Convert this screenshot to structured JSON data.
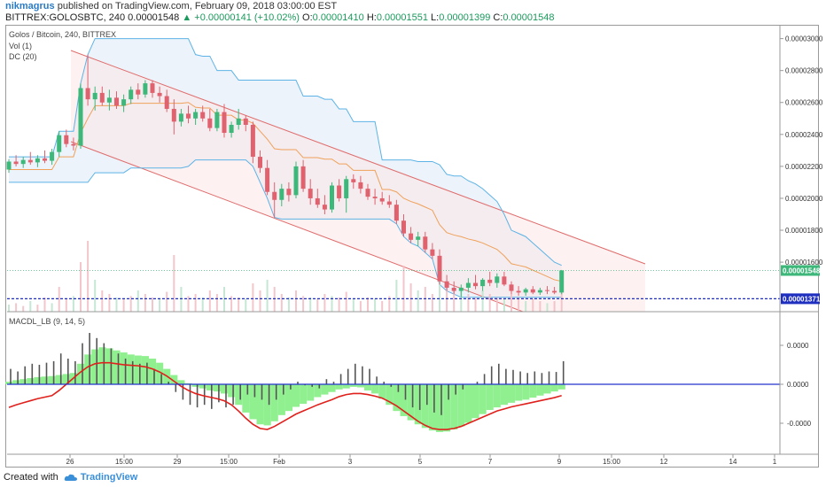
{
  "header": {
    "user": "nikmagrus",
    "published": "published on TradingView.com, February 09, 2018 03:00:00 EST",
    "symbol": "BITTREX:GOLOSBTC, 240",
    "price": "0.00001548",
    "change": "+0.00000141 (+10.02%)",
    "o_label": "O:",
    "o_value": "0.00001410",
    "h_label": "H:",
    "h_value": "0.00001551",
    "l_label": "L:",
    "l_value": "0.00001399",
    "c_label": "C:",
    "c_value": "0.00001548"
  },
  "legend": {
    "title": "Golos / Bitcoin, 240, BITTREX",
    "vol": "Vol (1)",
    "dc": "DC (20)",
    "macd": "MACDL_LB (9, 14, 5)"
  },
  "footer": {
    "created": "Created with",
    "brand": "TradingView"
  },
  "colors": {
    "up": "#3db87a",
    "down": "#e0626e",
    "dc_band": "#5db3e6",
    "dc_mid": "#f0a15a",
    "channel": "#e06c6c",
    "macd_hist": "#90f090",
    "signal": "#e0201c",
    "zero": "#2233cc"
  },
  "chart_data": [
    {
      "type": "candlestick",
      "title": "Golos / Bitcoin, 240, BITTREX",
      "y_ticks": [
        "0.00003000",
        "0.00002800",
        "0.00002600",
        "0.00002400",
        "0.00002200",
        "0.00002000",
        "0.00001800",
        "0.00001600"
      ],
      "ylim": [
        1.29e-05,
        3.02e-05
      ],
      "x_ticks": [
        "26",
        "15:00",
        "29",
        "15:00",
        "Feb",
        "3",
        "5",
        "7",
        "9",
        "15:00",
        "12",
        "14",
        "1"
      ],
      "price_labels": [
        {
          "value": "0.00001548",
          "color": "#3db87a"
        },
        {
          "value": "0.00001371",
          "color": "#1f2fbf"
        }
      ],
      "candles": [
        [
          2.18e-05,
          2.245e-05,
          2.16e-05,
          2.23e-05
        ],
        [
          2.23e-05,
          2.27e-05,
          2.2e-05,
          2.215e-05
        ],
        [
          2.215e-05,
          2.26e-05,
          2.19e-05,
          2.24e-05
        ],
        [
          2.24e-05,
          2.29e-05,
          2.21e-05,
          2.225e-05
        ],
        [
          2.225e-05,
          2.27e-05,
          2.195e-05,
          2.25e-05
        ],
        [
          2.25e-05,
          2.3e-05,
          2.22e-05,
          2.235e-05
        ],
        [
          2.235e-05,
          2.31e-05,
          2.21e-05,
          2.29e-05
        ],
        [
          2.29e-05,
          2.42e-05,
          2.26e-05,
          2.395e-05
        ],
        [
          2.395e-05,
          2.43e-05,
          2.32e-05,
          2.34e-05
        ],
        [
          2.34e-05,
          2.38e-05,
          2.3e-05,
          2.33e-05
        ],
        [
          2.33e-05,
          2.72e-05,
          2.31e-05,
          2.69e-05
        ],
        [
          2.69e-05,
          2.9e-05,
          2.58e-05,
          2.62e-05
        ],
        [
          2.62e-05,
          2.7e-05,
          2.55e-05,
          2.66e-05
        ],
        [
          2.66e-05,
          2.7e-05,
          2.58e-05,
          2.6e-05
        ],
        [
          2.6e-05,
          2.68e-05,
          2.55e-05,
          2.63e-05
        ],
        [
          2.63e-05,
          2.67e-05,
          2.56e-05,
          2.58e-05
        ],
        [
          2.58e-05,
          2.65e-05,
          2.54e-05,
          2.62e-05
        ],
        [
          2.62e-05,
          2.7e-05,
          2.59e-05,
          2.68e-05
        ],
        [
          2.68e-05,
          2.72e-05,
          2.62e-05,
          2.65e-05
        ],
        [
          2.65e-05,
          2.74e-05,
          2.63e-05,
          2.72e-05
        ],
        [
          2.72e-05,
          2.74e-05,
          2.63e-05,
          2.66e-05
        ],
        [
          2.66e-05,
          2.7e-05,
          2.6e-05,
          2.64e-05
        ],
        [
          2.64e-05,
          2.68e-05,
          2.54e-05,
          2.56e-05
        ],
        [
          2.56e-05,
          2.62e-05,
          2.4e-05,
          2.48e-05
        ],
        [
          2.48e-05,
          2.56e-05,
          2.45e-05,
          2.53e-05
        ],
        [
          2.53e-05,
          2.58e-05,
          2.47e-05,
          2.5e-05
        ],
        [
          2.5e-05,
          2.56e-05,
          2.46e-05,
          2.54e-05
        ],
        [
          2.54e-05,
          2.58e-05,
          2.48e-05,
          2.5e-05
        ],
        [
          2.5e-05,
          2.56e-05,
          2.42e-05,
          2.44e-05
        ],
        [
          2.44e-05,
          2.56e-05,
          2.42e-05,
          2.54e-05
        ],
        [
          2.54e-05,
          2.59e-05,
          2.38e-05,
          2.41e-05
        ],
        [
          2.41e-05,
          2.48e-05,
          2.38e-05,
          2.46e-05
        ],
        [
          2.46e-05,
          2.56e-05,
          2.43e-05,
          2.5e-05
        ],
        [
          2.5e-05,
          2.52e-05,
          2.42e-05,
          2.46e-05
        ],
        [
          2.46e-05,
          2.48e-05,
          2.22e-05,
          2.26e-05
        ],
        [
          2.26e-05,
          2.3e-05,
          2.16e-05,
          2.19e-05
        ],
        [
          2.19e-05,
          2.24e-05,
          2.02e-05,
          2.04e-05
        ],
        [
          2.04e-05,
          2.1e-05,
          1.88e-05,
          1.99e-05
        ],
        [
          1.99e-05,
          2.09e-05,
          1.95e-05,
          2.06e-05
        ],
        [
          2.06e-05,
          2.1e-05,
          1.98e-05,
          2.02e-05
        ],
        [
          2.02e-05,
          2.23e-05,
          2e-05,
          2.2e-05
        ],
        [
          2.2e-05,
          2.24e-05,
          2.04e-05,
          2.06e-05
        ],
        [
          2.06e-05,
          2.12e-05,
          1.96e-05,
          2e-05
        ],
        [
          2e-05,
          2.06e-05,
          1.94e-05,
          1.96e-05
        ],
        [
          1.96e-05,
          2.02e-05,
          1.9e-05,
          1.93e-05
        ],
        [
          1.93e-05,
          2.1e-05,
          1.91e-05,
          2.08e-05
        ],
        [
          2.08e-05,
          2.12e-05,
          1.98e-05,
          2e-05
        ],
        [
          2e-05,
          2.14e-05,
          1.91e-05,
          2.12e-05
        ],
        [
          2.12e-05,
          2.15e-05,
          2.06e-05,
          2.1e-05
        ],
        [
          2.1e-05,
          2.14e-05,
          2.03e-05,
          2.06e-05
        ],
        [
          2.06e-05,
          2.09e-05,
          1.99e-05,
          2.01e-05
        ],
        [
          2.01e-05,
          2.06e-05,
          1.96e-05,
          2e-05
        ],
        [
          2e-05,
          2.04e-05,
          1.96e-05,
          1.98e-05
        ],
        [
          1.98e-05,
          2.02e-05,
          1.94e-05,
          1.96e-05
        ],
        [
          1.96e-05,
          1.99e-05,
          1.84e-05,
          1.86e-05
        ],
        [
          1.86e-05,
          1.9e-05,
          1.76e-05,
          1.78e-05
        ],
        [
          1.78e-05,
          1.82e-05,
          1.72e-05,
          1.74e-05
        ],
        [
          1.74e-05,
          1.79e-05,
          1.7e-05,
          1.76e-05
        ],
        [
          1.76e-05,
          1.79e-05,
          1.66e-05,
          1.68e-05
        ],
        [
          1.68e-05,
          1.72e-05,
          1.62e-05,
          1.64e-05
        ],
        [
          1.64e-05,
          1.68e-05,
          1.46e-05,
          1.48e-05
        ],
        [
          1.48e-05,
          1.52e-05,
          1.42e-05,
          1.44e-05
        ],
        [
          1.44e-05,
          1.48e-05,
          1.4e-05,
          1.42e-05
        ],
        [
          1.42e-05,
          1.46e-05,
          1.38e-05,
          1.44e-05
        ],
        [
          1.44e-05,
          1.5e-05,
          1.41e-05,
          1.47e-05
        ],
        [
          1.47e-05,
          1.52e-05,
          1.43e-05,
          1.45e-05
        ],
        [
          1.45e-05,
          1.5e-05,
          1.42e-05,
          1.49e-05
        ],
        [
          1.49e-05,
          1.54e-05,
          1.45e-05,
          1.47e-05
        ],
        [
          1.47e-05,
          1.53e-05,
          1.44e-05,
          1.51e-05
        ],
        [
          1.51e-05,
          1.54e-05,
          1.45e-05,
          1.46e-05
        ],
        [
          1.46e-05,
          1.48e-05,
          1.4e-05,
          1.42e-05
        ],
        [
          1.42e-05,
          1.45e-05,
          1.39e-05,
          1.41e-05
        ],
        [
          1.41e-05,
          1.44e-05,
          1.39e-05,
          1.43e-05
        ],
        [
          1.43e-05,
          1.45e-05,
          1.4e-05,
          1.41e-05
        ],
        [
          1.41e-05,
          1.44e-05,
          1.395e-05,
          1.425e-05
        ],
        [
          1.425e-05,
          1.45e-05,
          1.4e-05,
          1.42e-05
        ],
        [
          1.42e-05,
          1.445e-05,
          1.4e-05,
          1.41e-05
        ],
        [
          1.41e-05,
          1.551e-05,
          1.399e-05,
          1.548e-05
        ]
      ],
      "dc_upper": [
        2.26e-05,
        2.26e-05,
        2.26e-05,
        2.26e-05,
        2.26e-05,
        2.26e-05,
        2.26e-05,
        2.42e-05,
        2.42e-05,
        2.42e-05,
        2.72e-05,
        2.9e-05,
        3e-05,
        3e-05,
        3e-05,
        3e-05,
        3e-05,
        3e-05,
        3e-05,
        3e-05,
        3e-05,
        3e-05,
        3e-05,
        3e-05,
        3e-05,
        3e-05,
        2.9e-05,
        2.89e-05,
        2.89e-05,
        2.8e-05,
        2.8e-05,
        2.8e-05,
        2.74e-05,
        2.74e-05,
        2.74e-05,
        2.74e-05,
        2.74e-05,
        2.74e-05,
        2.74e-05,
        2.74e-05,
        2.74e-05,
        2.64e-05,
        2.64e-05,
        2.64e-05,
        2.62e-05,
        2.62e-05,
        2.56e-05,
        2.56e-05,
        2.48e-05,
        2.48e-05,
        2.48e-05,
        2.48e-05,
        2.24e-05,
        2.24e-05,
        2.24e-05,
        2.24e-05,
        2.24e-05,
        2.23e-05,
        2.23e-05,
        2.23e-05,
        2.21e-05,
        2.15e-05,
        2.14e-05,
        2.14e-05,
        2.11e-05,
        2.09e-05,
        2.06e-05,
        2.02e-05,
        1.98e-05,
        1.9e-05,
        1.8e-05,
        1.78e-05,
        1.76e-05,
        1.72e-05,
        1.68e-05,
        1.64e-05,
        1.6e-05,
        1.58e-05
      ],
      "dc_lower": [
        2.1e-05,
        2.1e-05,
        2.1e-05,
        2.1e-05,
        2.1e-05,
        2.1e-05,
        2.1e-05,
        2.1e-05,
        2.1e-05,
        2.1e-05,
        2.1e-05,
        2.1e-05,
        2.16e-05,
        2.16e-05,
        2.16e-05,
        2.16e-05,
        2.16e-05,
        2.19e-05,
        2.19e-05,
        2.19e-05,
        2.19e-05,
        2.19e-05,
        2.19e-05,
        2.19e-05,
        2.19e-05,
        2.2e-05,
        2.24e-05,
        2.24e-05,
        2.24e-05,
        2.24e-05,
        2.24e-05,
        2.24e-05,
        2.24e-05,
        2.24e-05,
        2.2e-05,
        2.1e-05,
        2e-05,
        1.88e-05,
        1.87e-05,
        1.87e-05,
        1.87e-05,
        1.87e-05,
        1.87e-05,
        1.87e-05,
        1.87e-05,
        1.87e-05,
        1.87e-05,
        1.87e-05,
        1.87e-05,
        1.87e-05,
        1.87e-05,
        1.87e-05,
        1.87e-05,
        1.87e-05,
        1.84e-05,
        1.76e-05,
        1.72e-05,
        1.7e-05,
        1.66e-05,
        1.62e-05,
        1.46e-05,
        1.42e-05,
        1.4e-05,
        1.38e-05,
        1.38e-05,
        1.38e-05,
        1.38e-05,
        1.38e-05,
        1.38e-05,
        1.38e-05,
        1.38e-05,
        1.38e-05,
        1.38e-05,
        1.38e-05,
        1.38e-05,
        1.38e-05,
        1.38e-05,
        1.38e-05
      ],
      "volume": [
        0.1,
        0.12,
        0.08,
        0.15,
        0.1,
        0.2,
        0.12,
        0.35,
        0.18,
        0.22,
        0.7,
        1.0,
        0.45,
        0.3,
        0.25,
        0.2,
        0.18,
        0.22,
        0.3,
        0.25,
        0.2,
        0.18,
        0.28,
        0.8,
        0.35,
        0.22,
        0.25,
        0.2,
        0.3,
        0.25,
        0.35,
        0.22,
        0.2,
        0.18,
        0.4,
        0.3,
        0.45,
        0.35,
        0.25,
        0.2,
        0.3,
        0.22,
        0.2,
        0.18,
        0.25,
        0.22,
        0.2,
        0.28,
        0.18,
        0.15,
        0.2,
        0.18,
        0.15,
        0.22,
        0.45,
        0.65,
        0.4,
        0.3,
        0.35,
        0.25,
        0.55,
        0.4,
        0.3,
        0.35,
        0.25,
        0.2,
        0.3,
        0.25,
        0.2,
        0.18,
        0.25,
        0.2,
        0.15,
        0.18,
        0.15,
        0.12,
        0.15,
        0.3
      ]
    },
    {
      "type": "macd",
      "title": "MACDL_LB (9, 14, 5)",
      "y_ticks": [
        "0.0000",
        "0.0000",
        "-0.0000"
      ],
      "histogram": [
        0.05,
        0.08,
        0.1,
        0.12,
        0.14,
        0.15,
        0.16,
        0.18,
        0.2,
        0.22,
        0.4,
        0.58,
        0.68,
        0.72,
        0.7,
        0.66,
        0.62,
        0.58,
        0.56,
        0.55,
        0.5,
        0.42,
        0.3,
        0.18,
        0.08,
        0.02,
        -0.05,
        -0.08,
        -0.12,
        -0.14,
        -0.18,
        -0.25,
        -0.4,
        -0.55,
        -0.68,
        -0.78,
        -0.8,
        -0.72,
        -0.6,
        -0.52,
        -0.44,
        -0.38,
        -0.32,
        -0.25,
        -0.2,
        -0.15,
        -0.1,
        -0.08,
        -0.05,
        -0.06,
        -0.12,
        -0.18,
        -0.28,
        -0.4,
        -0.52,
        -0.62,
        -0.7,
        -0.78,
        -0.85,
        -0.9,
        -0.93,
        -0.92,
        -0.88,
        -0.82,
        -0.75,
        -0.66,
        -0.58,
        -0.5,
        -0.45,
        -0.4,
        -0.36,
        -0.32,
        -0.3,
        -0.26,
        -0.22,
        -0.18,
        -0.14,
        -0.1
      ],
      "macd_bars": [
        0.3,
        0.25,
        0.35,
        0.4,
        0.38,
        0.42,
        0.45,
        0.6,
        0.5,
        0.45,
        0.8,
        1.0,
        0.9,
        0.8,
        0.7,
        0.6,
        0.5,
        0.45,
        0.4,
        0.42,
        0.3,
        0.2,
        0.05,
        -0.15,
        -0.3,
        -0.4,
        -0.45,
        -0.4,
        -0.48,
        -0.35,
        -0.45,
        -0.4,
        -0.3,
        -0.2,
        -0.25,
        -0.3,
        -0.4,
        -0.3,
        -0.2,
        -0.1,
        0.05,
        -0.02,
        -0.05,
        -0.08,
        0.1,
        0.05,
        0.2,
        0.3,
        0.4,
        0.35,
        0.3,
        0.15,
        0.05,
        -0.05,
        -0.15,
        -0.3,
        -0.45,
        -0.5,
        -0.4,
        -0.55,
        -0.6,
        -0.3,
        -0.2,
        -0.1,
        0.0,
        0.05,
        0.2,
        0.35,
        0.4,
        0.3,
        0.28,
        0.25,
        0.22,
        0.25,
        0.22,
        0.25,
        0.24,
        0.45
      ],
      "signal": [
        -0.45,
        -0.4,
        -0.36,
        -0.32,
        -0.28,
        -0.25,
        -0.22,
        -0.12,
        0.0,
        0.12,
        0.24,
        0.34,
        0.4,
        0.42,
        0.42,
        0.4,
        0.38,
        0.37,
        0.36,
        0.34,
        0.3,
        0.24,
        0.16,
        0.06,
        -0.04,
        -0.12,
        -0.18,
        -0.22,
        -0.25,
        -0.28,
        -0.32,
        -0.4,
        -0.52,
        -0.66,
        -0.78,
        -0.86,
        -0.88,
        -0.82,
        -0.74,
        -0.66,
        -0.58,
        -0.52,
        -0.46,
        -0.4,
        -0.35,
        -0.3,
        -0.24,
        -0.2,
        -0.18,
        -0.18,
        -0.2,
        -0.23,
        -0.27,
        -0.34,
        -0.42,
        -0.52,
        -0.62,
        -0.72,
        -0.8,
        -0.86,
        -0.88,
        -0.88,
        -0.86,
        -0.82,
        -0.76,
        -0.7,
        -0.64,
        -0.58,
        -0.52,
        -0.48,
        -0.44,
        -0.41,
        -0.38,
        -0.35,
        -0.32,
        -0.29,
        -0.26,
        -0.22
      ]
    }
  ]
}
